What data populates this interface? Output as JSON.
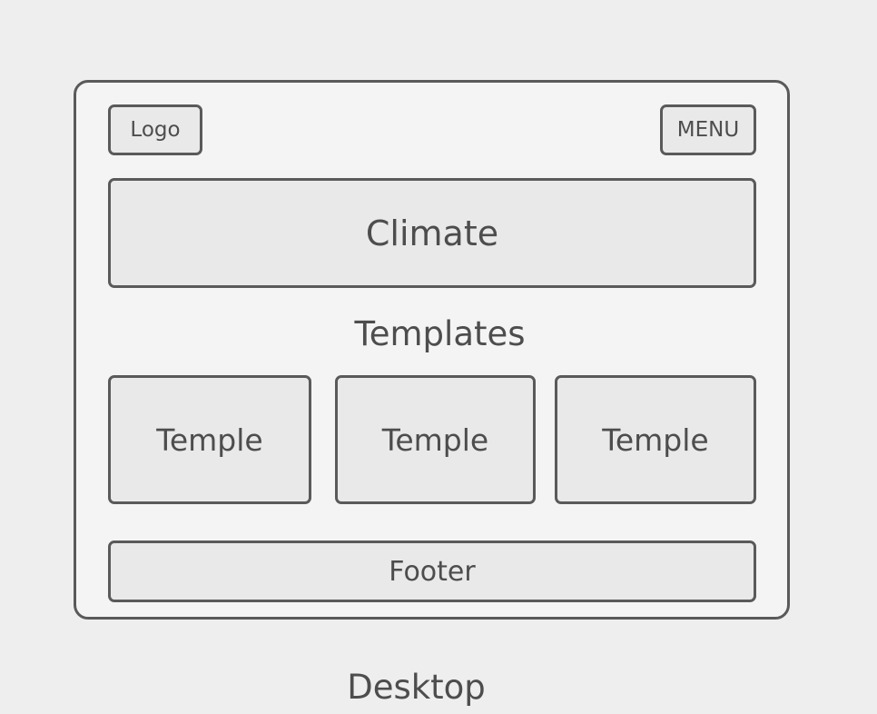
{
  "wireframe": {
    "logo_label": "Logo",
    "menu_label": "MENU",
    "hero_label": "Climate",
    "section_title": "Templates",
    "cards": [
      {
        "label": "Temple"
      },
      {
        "label": "Temple"
      },
      {
        "label": "Temple"
      }
    ],
    "footer_label": "Footer"
  },
  "caption": "Desktop"
}
